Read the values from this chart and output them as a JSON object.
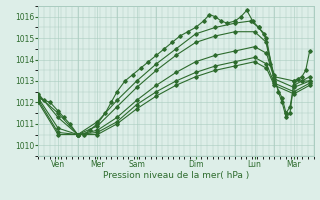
{
  "xlabel": "Pression niveau de la mer( hPa )",
  "bg_color": "#ddeee8",
  "grid_color": "#aaccc0",
  "line_color": "#2d6b2d",
  "ylim": [
    1009.5,
    1016.5
  ],
  "xlim": [
    0.0,
    7.0
  ],
  "yticks": [
    1010,
    1011,
    1012,
    1013,
    1014,
    1015,
    1016
  ],
  "xtick_labels": [
    "Ven",
    "Mer",
    "Sam",
    "Dim",
    "Lun",
    "Mar"
  ],
  "xtick_positions": [
    0.5,
    1.5,
    2.5,
    4.0,
    5.5,
    6.5
  ],
  "vlines": [
    1.0,
    2.0,
    3.0,
    5.0,
    6.0
  ],
  "series": [
    [
      [
        0.0,
        1012.2
      ],
      [
        0.15,
        1012.1
      ],
      [
        0.3,
        1012.0
      ],
      [
        0.5,
        1011.6
      ],
      [
        0.65,
        1011.3
      ],
      [
        0.8,
        1011.0
      ],
      [
        1.0,
        1010.5
      ],
      [
        1.15,
        1010.5
      ],
      [
        1.3,
        1010.7
      ],
      [
        1.5,
        1011.0
      ],
      [
        1.7,
        1011.5
      ],
      [
        1.85,
        1012.0
      ],
      [
        2.0,
        1012.5
      ],
      [
        2.2,
        1013.0
      ],
      [
        2.4,
        1013.3
      ],
      [
        2.6,
        1013.6
      ],
      [
        2.8,
        1013.9
      ],
      [
        3.0,
        1014.2
      ],
      [
        3.2,
        1014.5
      ],
      [
        3.4,
        1014.8
      ],
      [
        3.6,
        1015.1
      ],
      [
        3.8,
        1015.3
      ],
      [
        4.0,
        1015.5
      ],
      [
        4.2,
        1015.8
      ],
      [
        4.35,
        1016.1
      ],
      [
        4.5,
        1016.0
      ],
      [
        4.65,
        1015.8
      ],
      [
        4.8,
        1015.7
      ],
      [
        5.0,
        1015.8
      ],
      [
        5.15,
        1016.0
      ],
      [
        5.3,
        1016.3
      ],
      [
        5.45,
        1015.8
      ],
      [
        5.6,
        1015.5
      ],
      [
        5.75,
        1015.2
      ],
      [
        5.9,
        1013.8
      ],
      [
        6.0,
        1013.3
      ],
      [
        6.1,
        1012.5
      ],
      [
        6.2,
        1012.0
      ],
      [
        6.3,
        1011.3
      ],
      [
        6.4,
        1011.5
      ],
      [
        6.5,
        1013.0
      ],
      [
        6.6,
        1013.1
      ],
      [
        6.7,
        1013.2
      ],
      [
        6.8,
        1013.5
      ],
      [
        6.9,
        1014.4
      ]
    ],
    [
      [
        0.0,
        1012.3
      ],
      [
        0.5,
        1011.5
      ],
      [
        1.0,
        1010.5
      ],
      [
        1.5,
        1011.1
      ],
      [
        2.0,
        1012.1
      ],
      [
        2.5,
        1013.0
      ],
      [
        3.0,
        1013.8
      ],
      [
        3.5,
        1014.5
      ],
      [
        4.0,
        1015.2
      ],
      [
        4.5,
        1015.5
      ],
      [
        5.0,
        1015.7
      ],
      [
        5.4,
        1015.8
      ],
      [
        5.6,
        1015.5
      ],
      [
        5.8,
        1015.0
      ],
      [
        6.0,
        1013.0
      ],
      [
        6.2,
        1012.2
      ],
      [
        6.3,
        1011.5
      ],
      [
        6.4,
        1011.8
      ],
      [
        6.5,
        1012.8
      ],
      [
        6.7,
        1013.0
      ],
      [
        6.9,
        1013.2
      ]
    ],
    [
      [
        0.0,
        1012.4
      ],
      [
        0.5,
        1011.3
      ],
      [
        1.0,
        1010.5
      ],
      [
        1.5,
        1010.9
      ],
      [
        2.0,
        1011.8
      ],
      [
        2.5,
        1012.7
      ],
      [
        3.0,
        1013.5
      ],
      [
        3.5,
        1014.2
      ],
      [
        4.0,
        1014.8
      ],
      [
        4.5,
        1015.1
      ],
      [
        5.0,
        1015.3
      ],
      [
        5.5,
        1015.3
      ],
      [
        5.8,
        1014.8
      ],
      [
        6.0,
        1013.2
      ],
      [
        6.5,
        1013.0
      ],
      [
        6.9,
        1013.0
      ]
    ],
    [
      [
        0.0,
        1012.2
      ],
      [
        0.5,
        1010.8
      ],
      [
        1.0,
        1010.5
      ],
      [
        1.5,
        1010.7
      ],
      [
        2.0,
        1011.3
      ],
      [
        2.5,
        1012.1
      ],
      [
        3.0,
        1012.8
      ],
      [
        3.5,
        1013.4
      ],
      [
        4.0,
        1013.9
      ],
      [
        4.5,
        1014.2
      ],
      [
        5.0,
        1014.4
      ],
      [
        5.5,
        1014.6
      ],
      [
        5.8,
        1014.3
      ],
      [
        6.0,
        1013.1
      ],
      [
        6.5,
        1012.7
      ],
      [
        6.9,
        1013.0
      ]
    ],
    [
      [
        0.0,
        1012.1
      ],
      [
        0.5,
        1010.6
      ],
      [
        1.0,
        1010.5
      ],
      [
        1.5,
        1010.6
      ],
      [
        2.0,
        1011.1
      ],
      [
        2.5,
        1011.9
      ],
      [
        3.0,
        1012.5
      ],
      [
        3.5,
        1013.0
      ],
      [
        4.0,
        1013.4
      ],
      [
        4.5,
        1013.7
      ],
      [
        5.0,
        1013.9
      ],
      [
        5.5,
        1014.1
      ],
      [
        5.8,
        1013.8
      ],
      [
        6.0,
        1012.9
      ],
      [
        6.5,
        1012.5
      ],
      [
        6.9,
        1012.9
      ]
    ],
    [
      [
        0.0,
        1012.0
      ],
      [
        0.5,
        1010.5
      ],
      [
        1.0,
        1010.5
      ],
      [
        1.5,
        1010.5
      ],
      [
        2.0,
        1011.0
      ],
      [
        2.5,
        1011.7
      ],
      [
        3.0,
        1012.3
      ],
      [
        3.5,
        1012.8
      ],
      [
        4.0,
        1013.2
      ],
      [
        4.5,
        1013.5
      ],
      [
        5.0,
        1013.7
      ],
      [
        5.5,
        1013.9
      ],
      [
        5.8,
        1013.6
      ],
      [
        6.0,
        1012.8
      ],
      [
        6.5,
        1012.4
      ],
      [
        6.9,
        1012.8
      ]
    ]
  ],
  "marker": "D",
  "markersize": 1.8,
  "linewidth": 0.8
}
